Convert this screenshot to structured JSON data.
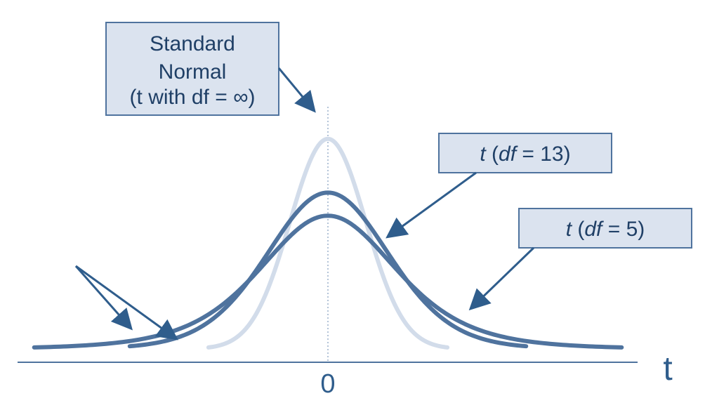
{
  "diagram": {
    "x_axis_label": "t",
    "center_tick_label": "0",
    "labels": {
      "standard_normal_line1": "Standard",
      "standard_normal_line2": "Normal",
      "standard_normal_line3": "(t with df = ∞)",
      "t13_t": "t",
      "t13_df": "df",
      "t13_rest": " = 13)",
      "t5_t": "t",
      "t5_df": "df",
      "t5_rest": " = 5)"
    },
    "colors": {
      "background": "#ffffff",
      "standard_normal_curve": "#d2dcea",
      "t_curves": "#4f739e",
      "axis": "#4f739e",
      "label_box_fill": "#dbe3ef",
      "label_box_border": "#4f739e",
      "label_text": "#1f3f66",
      "arrow": "#2f5d8c"
    }
  }
}
